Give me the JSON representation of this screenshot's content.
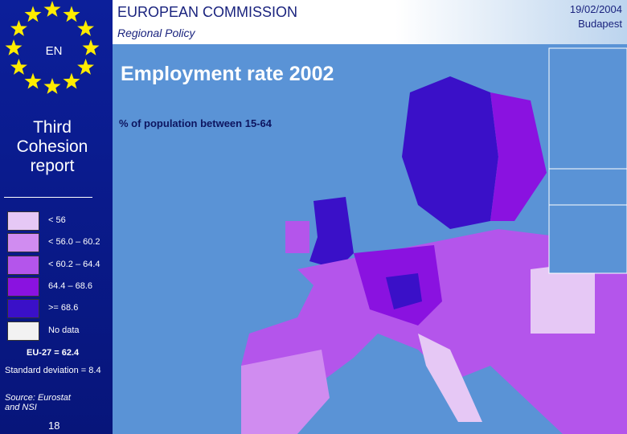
{
  "header": {
    "organization": "EUROPEAN COMMISSION",
    "department": "Regional Policy",
    "date": "19/02/2004",
    "place": "Budapest",
    "language": "EN"
  },
  "sidebar": {
    "report": "Third Cohesion report",
    "average": "EU-27 = 62.4",
    "deviation": "Standard deviation = 8.4",
    "source": "Source: Eurostat and NSI",
    "page": "18"
  },
  "map": {
    "title": "Employment rate 2002",
    "subtitle": "% of population between 15-64"
  },
  "legend": [
    {
      "label": "< 56",
      "color": "#e6c8f5"
    },
    {
      "label": "< 56.0 – 60.2",
      "color": "#d08cf0"
    },
    {
      "label": "< 60.2 – 64.4",
      "color": "#b455eb"
    },
    {
      "label": "64.4 – 68.6",
      "color": "#8a12e0"
    },
    {
      "label": ">= 68.6",
      "color": "#3a10c8"
    },
    {
      "label": "No data",
      "color": "#f2f2f2"
    }
  ]
}
